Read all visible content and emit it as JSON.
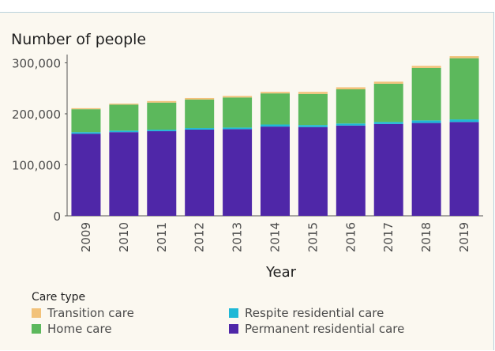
{
  "chart_data": {
    "type": "bar",
    "stacked": true,
    "title": "Number of people",
    "xlabel": "Year",
    "ylabel": "",
    "ylim": [
      0,
      310000
    ],
    "yticks": [
      0,
      100000,
      200000,
      300000
    ],
    "ytick_labels": [
      "0",
      "100,000",
      "200,000",
      "300,000"
    ],
    "categories": [
      "2009",
      "2010",
      "2011",
      "2012",
      "2013",
      "2014",
      "2015",
      "2016",
      "2017",
      "2018",
      "2019"
    ],
    "series": [
      {
        "name": "Permanent residential care",
        "color": "#4f27a8",
        "values": [
          161000,
          164000,
          166000,
          169000,
          170000,
          175000,
          174000,
          177000,
          180000,
          182000,
          184000
        ]
      },
      {
        "name": "Respite residential care",
        "color": "#1fb8d6",
        "values": [
          3000,
          3000,
          3000,
          3000,
          3000,
          4000,
          4000,
          4000,
          4000,
          5000,
          5000
        ]
      },
      {
        "name": "Home care",
        "color": "#5cb85c",
        "values": [
          45000,
          51000,
          53000,
          56000,
          59000,
          61000,
          61000,
          67000,
          75000,
          103000,
          120000
        ]
      },
      {
        "name": "Transition care",
        "color": "#f2c27a",
        "values": [
          2000,
          2000,
          3000,
          3000,
          3000,
          3000,
          4000,
          4000,
          4000,
          4000,
          4000
        ]
      }
    ],
    "legend": {
      "title": "Care type",
      "placement": "bottom",
      "order": [
        "Transition care",
        "Respite residential care",
        "Home care",
        "Permanent residential care"
      ]
    },
    "grid": false
  }
}
